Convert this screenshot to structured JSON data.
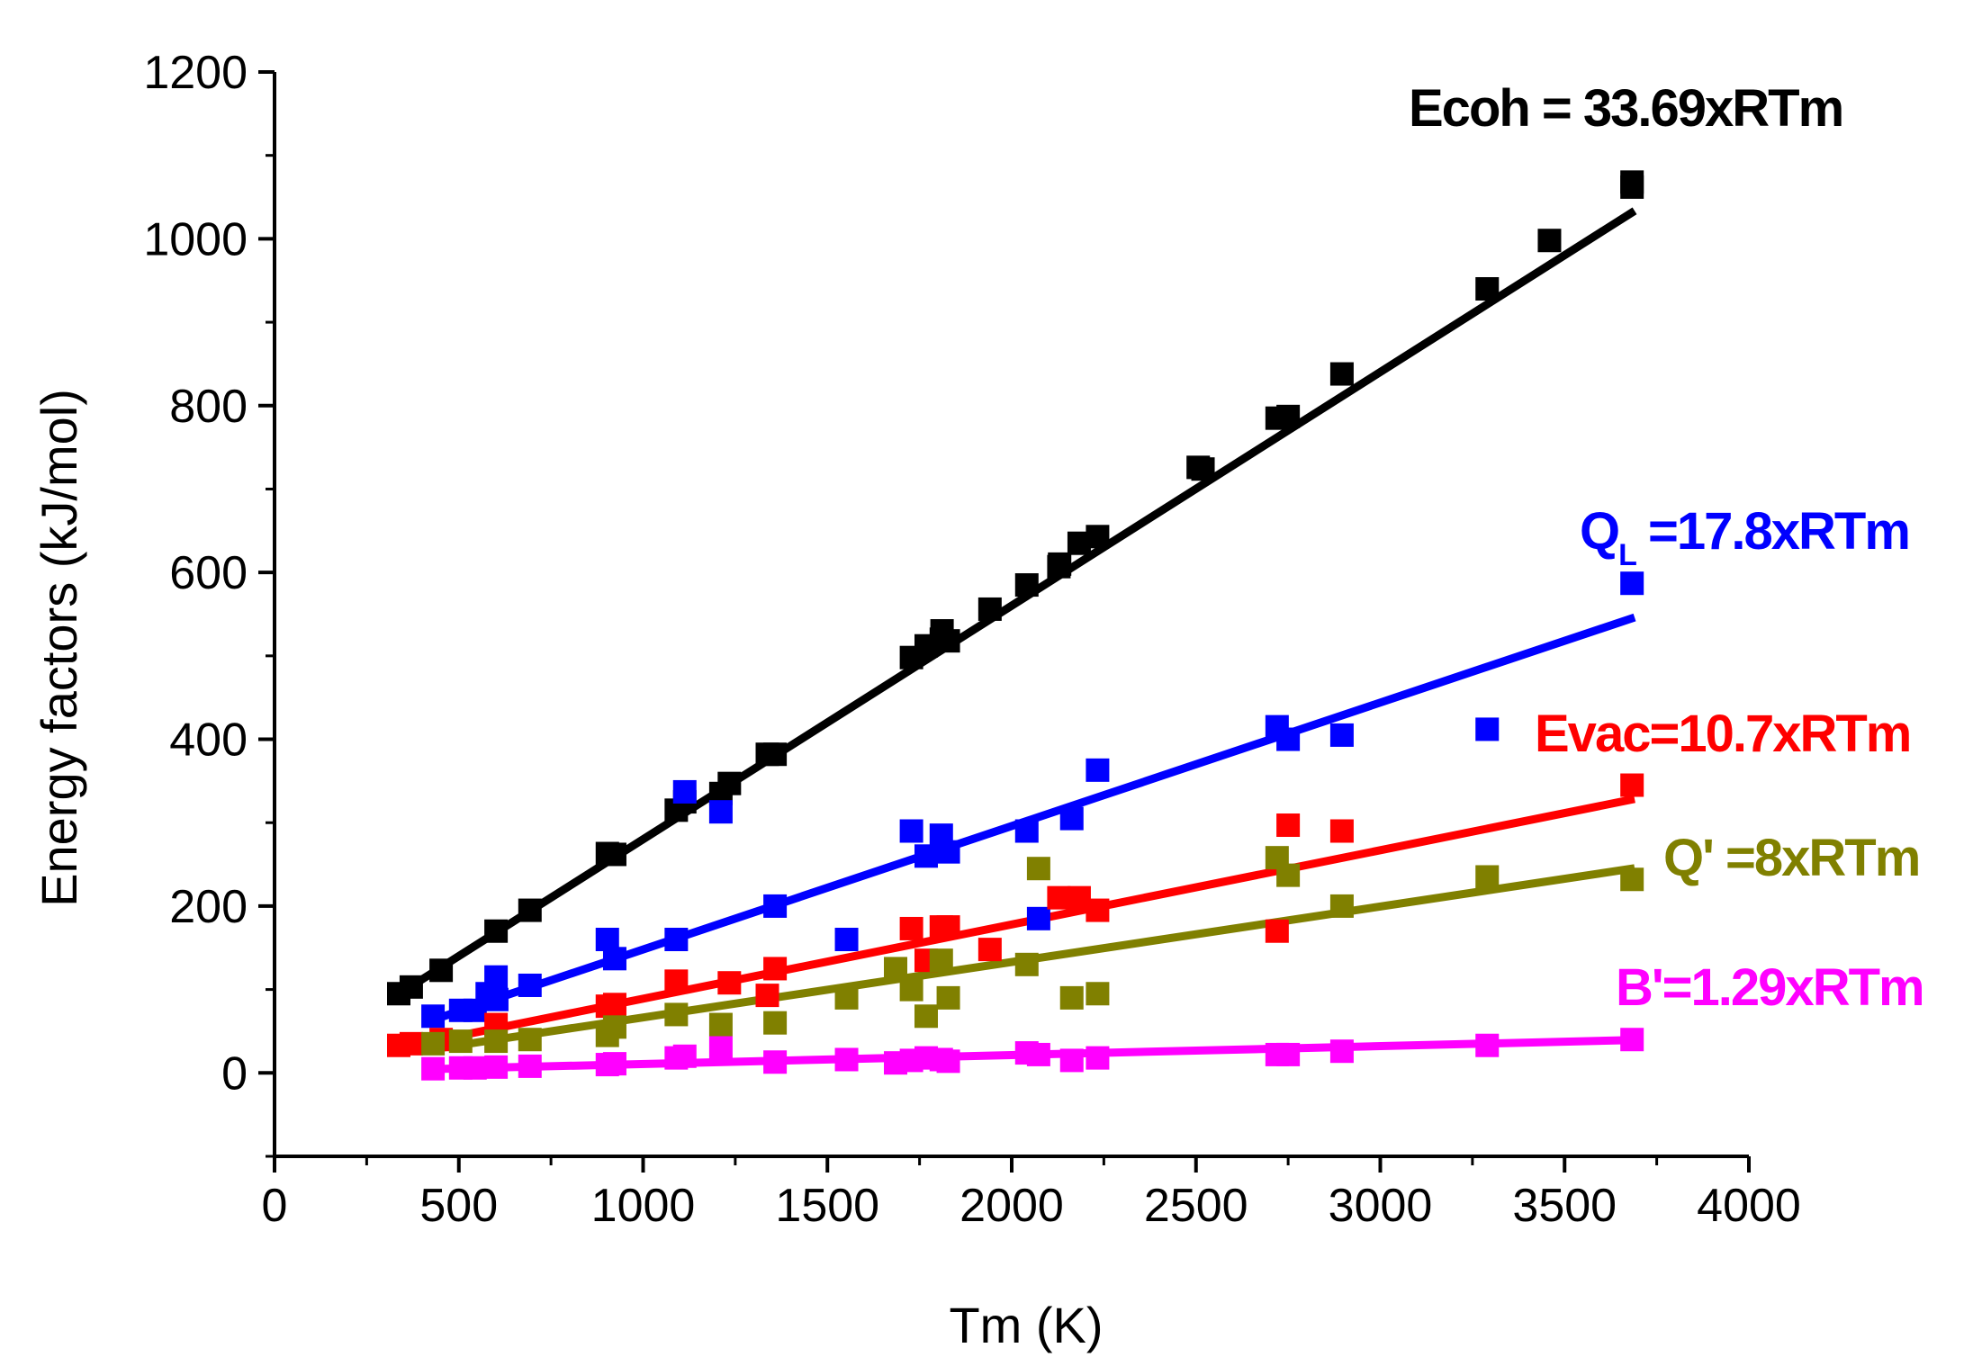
{
  "chart_data": {
    "type": "scatter",
    "title": "",
    "xlabel": "Tm (K)",
    "ylabel": "Energy factors (kJ/mol)",
    "xlim": [
      0,
      4000
    ],
    "ylim": [
      -100,
      1200
    ],
    "xticks": [
      0,
      500,
      1000,
      1500,
      2000,
      2500,
      3000,
      3500,
      4000
    ],
    "yticks": [
      0,
      200,
      400,
      600,
      800,
      1000,
      1200
    ],
    "grid": false,
    "legend": "none",
    "annotations": [
      {
        "series": "Ecoh",
        "text": "Ecoh = 33.69xRTm"
      },
      {
        "series": "QL",
        "text": "Q",
        "sub": "L",
        "text_after": " =17.8xRTm"
      },
      {
        "series": "Evac",
        "text": "Evac=10.7xRTm"
      },
      {
        "series": "Q'",
        "text": "Q' =8xRTm"
      },
      {
        "series": "B'",
        "text": "B'=1.29xRTm"
      }
    ],
    "series": [
      {
        "name": "Ecoh",
        "color": "#000000",
        "fit_slope": 0.2801,
        "fit_range": [
          330,
          3690
        ],
        "points": [
          [
            337,
            95
          ],
          [
            371,
            103
          ],
          [
            452,
            123
          ],
          [
            601,
            170
          ],
          [
            693,
            195
          ],
          [
            903,
            263
          ],
          [
            923,
            262
          ],
          [
            1090,
            315
          ],
          [
            1113,
            325
          ],
          [
            1211,
            335
          ],
          [
            1234,
            347
          ],
          [
            1337,
            382
          ],
          [
            1358,
            382
          ],
          [
            1728,
            498
          ],
          [
            1768,
            512
          ],
          [
            1809,
            520
          ],
          [
            1811,
            530
          ],
          [
            1828,
            518
          ],
          [
            1941,
            556
          ],
          [
            2041,
            585
          ],
          [
            2128,
            607
          ],
          [
            2130,
            610
          ],
          [
            2183,
            635
          ],
          [
            2233,
            643
          ],
          [
            2506,
            726
          ],
          [
            2519,
            724
          ],
          [
            2720,
            785
          ],
          [
            2750,
            787
          ],
          [
            2896,
            838
          ],
          [
            3290,
            940
          ],
          [
            3459,
            998
          ],
          [
            3683,
            1068
          ],
          [
            3683,
            1062
          ]
        ]
      },
      {
        "name": "QL",
        "color": "#0000ff",
        "fit_slope": 0.148,
        "fit_range": [
          430,
          3690
        ],
        "points": [
          [
            430,
            68
          ],
          [
            505,
            75
          ],
          [
            544,
            75
          ],
          [
            577,
            95
          ],
          [
            601,
            115
          ],
          [
            603,
            88
          ],
          [
            693,
            105
          ],
          [
            903,
            160
          ],
          [
            923,
            137
          ],
          [
            1090,
            160
          ],
          [
            1113,
            337
          ],
          [
            1211,
            313
          ],
          [
            1358,
            200
          ],
          [
            1552,
            160
          ],
          [
            1728,
            290
          ],
          [
            1768,
            260
          ],
          [
            1809,
            285
          ],
          [
            1828,
            265
          ],
          [
            2041,
            290
          ],
          [
            2073,
            185
          ],
          [
            2163,
            305
          ],
          [
            2233,
            363
          ],
          [
            2720,
            415
          ],
          [
            2750,
            400
          ],
          [
            2896,
            405
          ],
          [
            3290,
            412
          ],
          [
            3683,
            587
          ]
        ]
      },
      {
        "name": "Evac",
        "color": "#ff0000",
        "fit_slope": 0.089,
        "fit_range": [
          330,
          3690
        ],
        "points": [
          [
            337,
            33
          ],
          [
            371,
            35
          ],
          [
            452,
            40
          ],
          [
            601,
            58
          ],
          [
            903,
            80
          ],
          [
            923,
            82
          ],
          [
            1090,
            110
          ],
          [
            1234,
            108
          ],
          [
            1337,
            93
          ],
          [
            1358,
            125
          ],
          [
            1728,
            173
          ],
          [
            1768,
            135
          ],
          [
            1809,
            175
          ],
          [
            1828,
            175
          ],
          [
            1941,
            148
          ],
          [
            2128,
            210
          ],
          [
            2183,
            210
          ],
          [
            2233,
            195
          ],
          [
            2720,
            170
          ],
          [
            2750,
            297
          ],
          [
            2896,
            290
          ],
          [
            3683,
            345
          ]
        ]
      },
      {
        "name": "Q'",
        "color": "#808000",
        "fit_slope": 0.0665,
        "fit_range": [
          430,
          3690
        ],
        "points": [
          [
            430,
            35
          ],
          [
            505,
            38
          ],
          [
            601,
            38
          ],
          [
            693,
            40
          ],
          [
            903,
            45
          ],
          [
            923,
            55
          ],
          [
            1090,
            70
          ],
          [
            1211,
            58
          ],
          [
            1358,
            60
          ],
          [
            1552,
            90
          ],
          [
            1685,
            125
          ],
          [
            1728,
            100
          ],
          [
            1768,
            68
          ],
          [
            1809,
            135
          ],
          [
            1828,
            90
          ],
          [
            2041,
            130
          ],
          [
            2073,
            245
          ],
          [
            2163,
            90
          ],
          [
            2233,
            95
          ],
          [
            2720,
            258
          ],
          [
            2750,
            237
          ],
          [
            2896,
            200
          ],
          [
            3290,
            235
          ],
          [
            3683,
            232
          ]
        ]
      },
      {
        "name": "B'",
        "color": "#ff00ff",
        "fit_slope": 0.0107,
        "fit_range": [
          430,
          3690
        ],
        "points": [
          [
            430,
            5
          ],
          [
            505,
            6
          ],
          [
            544,
            6
          ],
          [
            601,
            7
          ],
          [
            693,
            8
          ],
          [
            903,
            10
          ],
          [
            923,
            11
          ],
          [
            1090,
            18
          ],
          [
            1113,
            20
          ],
          [
            1211,
            30
          ],
          [
            1358,
            13
          ],
          [
            1552,
            16
          ],
          [
            1685,
            12
          ],
          [
            1728,
            15
          ],
          [
            1768,
            18
          ],
          [
            1809,
            16
          ],
          [
            1828,
            14
          ],
          [
            2041,
            24
          ],
          [
            2073,
            22
          ],
          [
            2163,
            15
          ],
          [
            2233,
            18
          ],
          [
            2720,
            22
          ],
          [
            2750,
            22
          ],
          [
            2896,
            26
          ],
          [
            3290,
            33
          ],
          [
            3683,
            40
          ]
        ]
      }
    ]
  }
}
